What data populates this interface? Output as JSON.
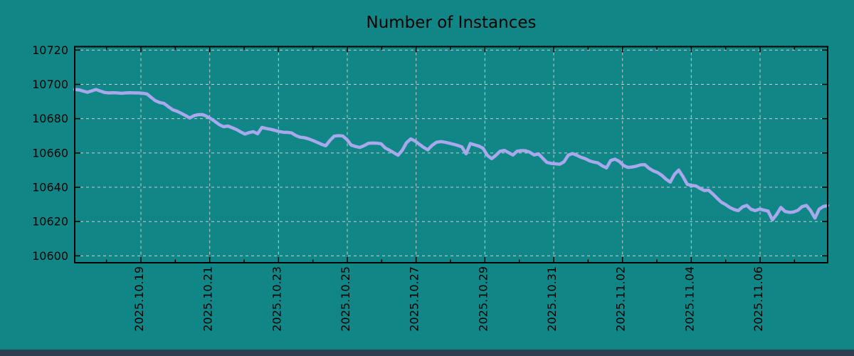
{
  "colors": {
    "background": "#108686",
    "line": "#a8a8ec",
    "grid": "#cccccc",
    "axis": "#000000",
    "text": "#000000",
    "bottom_bar": "#2d3e50"
  },
  "chart_data": {
    "type": "line",
    "title": "Number of Instances",
    "series_name": "instances",
    "legend": "none",
    "grid": true,
    "x_tick_labels": [
      "2025.10.19",
      "2025.10.21",
      "2025.10.23",
      "2025.10.25",
      "2025.10.27",
      "2025.10.29",
      "2025.10.31",
      "2025.11.02",
      "2025.11.04",
      "2025.11.06"
    ],
    "x_major_tick_interval": "2 days",
    "x_minor_tick_interval": "12 hours",
    "y_ticks": [
      10600,
      10620,
      10640,
      10660,
      10680,
      10700,
      10720
    ],
    "ylim": [
      10596,
      10722
    ],
    "x_range": [
      "~2025.10.17 01:30",
      "~2025.11.08 02:00"
    ],
    "sample_interval_hours": 3,
    "values": [
      10697.0,
      10696.8,
      10696.1,
      10695.4,
      10696.2,
      10697.0,
      10696.1,
      10695.3,
      10695.0,
      10695.1,
      10695.0,
      10694.8,
      10695.0,
      10695.1,
      10695.0,
      10695.0,
      10694.8,
      10694.4,
      10692.3,
      10690.4,
      10689.4,
      10688.9,
      10687.0,
      10685.2,
      10684.4,
      10683.2,
      10681.9,
      10680.4,
      10681.7,
      10682.3,
      10682.4,
      10681.4,
      10680.0,
      10678.3,
      10676.5,
      10675.3,
      10675.7,
      10674.7,
      10673.7,
      10672.3,
      10671.0,
      10671.9,
      10672.4,
      10671.2,
      10674.9,
      10674.3,
      10673.8,
      10673.2,
      10672.5,
      10672.1,
      10672.0,
      10671.7,
      10670.1,
      10669.2,
      10668.9,
      10668.2,
      10667.3,
      10666.2,
      10665.1,
      10664.2,
      10667.3,
      10669.8,
      10670.1,
      10669.9,
      10667.8,
      10664.6,
      10663.8,
      10663.2,
      10664.2,
      10665.6,
      10665.8,
      10665.7,
      10665.4,
      10662.9,
      10661.6,
      10660.2,
      10658.7,
      10661.6,
      10666.0,
      10668.2,
      10667.0,
      10665.1,
      10663.3,
      10661.8,
      10664.4,
      10666.2,
      10666.6,
      10666.3,
      10665.7,
      10665.1,
      10664.4,
      10663.6,
      10659.5,
      10665.5,
      10664.7,
      10664.0,
      10662.7,
      10658.6,
      10656.7,
      10658.6,
      10661.0,
      10661.5,
      10660.2,
      10658.8,
      10661.0,
      10661.4,
      10661.3,
      10660.4,
      10658.8,
      10659.5,
      10657.0,
      10654.5,
      10653.9,
      10653.7,
      10653.4,
      10654.8,
      10658.7,
      10659.7,
      10658.7,
      10657.5,
      10656.7,
      10655.4,
      10654.7,
      10654.2,
      10652.5,
      10651.3,
      10655.6,
      10656.4,
      10655.1,
      10652.7,
      10651.6,
      10651.8,
      10652.3,
      10653.1,
      10653.2,
      10651.1,
      10649.6,
      10648.6,
      10647.0,
      10644.7,
      10643.0,
      10647.6,
      10650.0,
      10646.1,
      10641.7,
      10641.1,
      10640.8,
      10639.3,
      10638.1,
      10638.3,
      10636.1,
      10633.6,
      10631.3,
      10629.9,
      10628.2,
      10627.0,
      10626.4,
      10628.6,
      10629.4,
      10627.1,
      10626.4,
      10627.3,
      10626.7,
      10626.1,
      10621.0,
      10624.2,
      10628.2,
      10625.9,
      10625.4,
      10625.6,
      10626.6,
      10628.7,
      10629.4,
      10626.4,
      10622.0,
      10627.2,
      10628.8,
      10629.3
    ]
  }
}
